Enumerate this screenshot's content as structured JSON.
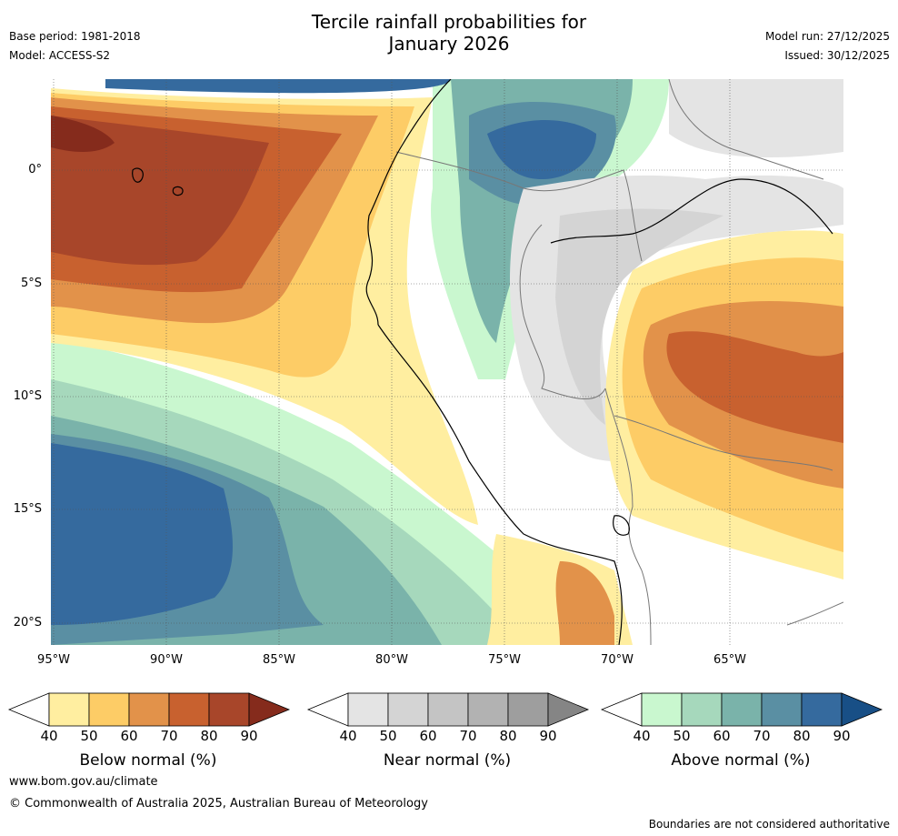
{
  "title": {
    "line1": "Tercile rainfall probabilities for",
    "line2": "January 2026"
  },
  "meta_left": {
    "base_period": "Base period: 1981-2018",
    "model": "Model: ACCESS-S2"
  },
  "meta_right": {
    "model_run": "Model run: 27/12/2025",
    "issued": "Issued: 30/12/2025"
  },
  "map": {
    "lat_labels": [
      "0°",
      "5°S",
      "10°S",
      "15°S",
      "20°S"
    ],
    "lon_labels": [
      "95°W",
      "90°W",
      "85°W",
      "80°W",
      "75°W",
      "70°W",
      "65°W"
    ]
  },
  "legend": {
    "below": {
      "label": "Below normal (%)",
      "ticks": [
        "40",
        "50",
        "60",
        "70",
        "80",
        "90"
      ],
      "colors": [
        "#ffffff",
        "#ffeea0",
        "#fdcc66",
        "#e2924a",
        "#c8612f",
        "#a8462a",
        "#852b1c"
      ]
    },
    "near": {
      "label": "Near normal (%)",
      "ticks": [
        "40",
        "50",
        "60",
        "70",
        "80",
        "90"
      ],
      "colors": [
        "#ffffff",
        "#e4e4e4",
        "#d4d4d4",
        "#c4c4c4",
        "#b2b2b2",
        "#9e9e9e",
        "#858585"
      ]
    },
    "above": {
      "label": "Above normal (%)",
      "ticks": [
        "40",
        "50",
        "60",
        "70",
        "80",
        "90"
      ],
      "colors": [
        "#ffffff",
        "#c9f7cf",
        "#a6d8bc",
        "#7ab3aa",
        "#5a8fa3",
        "#356a9e",
        "#184f86"
      ]
    }
  },
  "footer": {
    "url": "www.bom.gov.au/climate",
    "copyright": "© Commonwealth of Australia 2025, Australian Bureau of Meteorology",
    "disclaimer": "Boundaries are not considered authoritative"
  }
}
